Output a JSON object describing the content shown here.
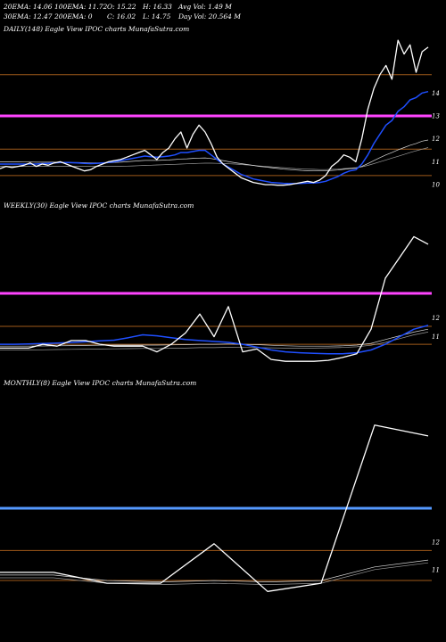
{
  "header": {
    "ema20": "20EMA: 14.06",
    "ema100": "100EMA: 11.72",
    "open": "O: 15.22",
    "high": "H: 16.33",
    "avg_vol": "Avg Vol: 1.49 M",
    "ema30": "30EMA: 12.47",
    "ema200": "200EMA: 0",
    "close": "C: 16.02",
    "low": "L: 14.75",
    "day_vol": "Day Vol: 20.564 M"
  },
  "colors": {
    "background": "#000000",
    "price": "#ffffff",
    "ema": "#1f4fff",
    "magenta_level": "#ff44ff",
    "blue_level": "#5599ff",
    "orange_level": "#a05a1a"
  },
  "chart_data": [
    {
      "type": "line",
      "title": "DAILY(148) Eagle   View  IPOC charts MunafaSutra.com",
      "ytick_labels": [
        "14",
        "13",
        "12",
        "11",
        "10"
      ],
      "yticks": [
        14,
        13,
        12,
        11,
        10
      ],
      "ylim": [
        9.5,
        16.5
      ],
      "horizontal_levels": [
        14.8,
        13,
        11.55,
        10.4
      ],
      "highlight_level": 13,
      "series": [
        {
          "role": "price",
          "values": [
            10.7,
            10.8,
            10.75,
            10.8,
            10.85,
            10.95,
            10.8,
            10.9,
            10.85,
            10.95,
            11.0,
            10.9,
            10.8,
            10.7,
            10.6,
            10.65,
            10.8,
            10.9,
            11.0,
            11.05,
            11.1,
            11.2,
            11.3,
            11.4,
            11.5,
            11.3,
            11.1,
            11.4,
            11.6,
            12.0,
            12.3,
            11.6,
            12.2,
            12.6,
            12.3,
            11.8,
            11.2,
            10.9,
            10.7,
            10.5,
            10.3,
            10.2,
            10.1,
            10.05,
            10.0,
            10.0,
            9.98,
            9.98,
            10.0,
            10.05,
            10.1,
            10.15,
            10.1,
            10.2,
            10.4,
            10.8,
            11.0,
            11.3,
            11.2,
            11.0,
            12.0,
            13.3,
            14.2,
            14.8,
            15.2,
            14.6,
            16.3,
            15.7,
            16.1,
            14.9,
            15.8,
            16.0
          ]
        },
        {
          "role": "ema",
          "values": [
            10.9,
            10.9,
            10.9,
            10.9,
            10.9,
            10.9,
            10.9,
            10.92,
            10.93,
            10.95,
            10.97,
            10.97,
            10.96,
            10.95,
            10.93,
            10.92,
            10.93,
            10.95,
            10.97,
            11.0,
            11.05,
            11.1,
            11.15,
            11.2,
            11.25,
            11.22,
            11.2,
            11.22,
            11.25,
            11.3,
            11.4,
            11.4,
            11.45,
            11.5,
            11.5,
            11.3,
            11.1,
            10.9,
            10.75,
            10.6,
            10.45,
            10.35,
            10.25,
            10.2,
            10.15,
            10.1,
            10.08,
            10.06,
            10.05,
            10.05,
            10.06,
            10.07,
            10.07,
            10.1,
            10.15,
            10.25,
            10.35,
            10.5,
            10.6,
            10.65,
            10.9,
            11.3,
            11.8,
            12.2,
            12.6,
            12.8,
            13.2,
            13.4,
            13.7,
            13.8,
            14.0,
            14.06
          ]
        },
        {
          "role": "avg",
          "values": [
            11.0,
            11.0,
            11.0,
            11.0,
            10.99,
            10.99,
            10.98,
            10.98,
            10.98,
            10.98,
            10.98,
            10.98,
            10.97,
            10.97,
            10.96,
            10.95,
            10.95,
            10.95,
            10.96,
            10.97,
            10.98,
            11.0,
            11.02,
            11.04,
            11.06,
            11.06,
            11.06,
            11.07,
            11.08,
            11.1,
            11.12,
            11.13,
            11.15,
            11.16,
            11.17,
            11.14,
            11.1,
            11.05,
            11.0,
            10.96,
            10.92,
            10.88,
            10.84,
            10.8,
            10.77,
            10.74,
            10.71,
            10.68,
            10.66,
            10.64,
            10.62,
            10.61,
            10.6,
            10.6,
            10.6,
            10.62,
            10.64,
            10.67,
            10.7,
            10.72,
            10.8,
            10.92,
            11.05,
            11.18,
            11.3,
            11.4,
            11.52,
            11.62,
            11.72,
            11.8,
            11.9,
            11.95
          ]
        },
        {
          "role": "avg2",
          "values": [
            10.8,
            10.8,
            10.8,
            10.8,
            10.8,
            10.8,
            10.8,
            10.8,
            10.8,
            10.8,
            10.8,
            10.8,
            10.8,
            10.8,
            10.8,
            10.8,
            10.8,
            10.8,
            10.8,
            10.8,
            10.8,
            10.81,
            10.82,
            10.83,
            10.84,
            10.85,
            10.86,
            10.87,
            10.88,
            10.89,
            10.9,
            10.91,
            10.92,
            10.93,
            10.94,
            10.94,
            10.93,
            10.92,
            10.91,
            10.9,
            10.88,
            10.86,
            10.84,
            10.82,
            10.8,
            10.78,
            10.76,
            10.74,
            10.72,
            10.7,
            10.69,
            10.68,
            10.67,
            10.66,
            10.66,
            10.67,
            10.68,
            10.7,
            10.72,
            10.74,
            10.78,
            10.84,
            10.92,
            11.0,
            11.08,
            11.16,
            11.24,
            11.32,
            11.4,
            11.48,
            11.55,
            11.62
          ]
        }
      ]
    },
    {
      "type": "line",
      "title": "WEEKLY(30) Eagle   View  IPOC charts MunafaSutra.com",
      "ytick_labels": [
        "12",
        "11"
      ],
      "yticks": [
        12,
        11
      ],
      "ylim": [
        9.0,
        17.5
      ],
      "horizontal_levels": [
        11.55,
        10.6
      ],
      "highlight_level": 13.3,
      "series": [
        {
          "role": "price",
          "values": [
            10.4,
            10.4,
            10.4,
            10.6,
            10.5,
            10.8,
            10.8,
            10.6,
            10.5,
            10.5,
            10.5,
            10.2,
            10.6,
            11.2,
            12.2,
            11.0,
            12.6,
            10.2,
            10.35,
            9.8,
            9.7,
            9.7,
            9.7,
            9.75,
            9.9,
            10.1,
            11.4,
            14.1,
            15.2,
            16.3,
            15.9
          ]
        },
        {
          "role": "ema",
          "values": [
            10.6,
            10.6,
            10.62,
            10.64,
            10.66,
            10.7,
            10.74,
            10.78,
            10.82,
            10.95,
            11.1,
            11.05,
            10.95,
            10.85,
            10.8,
            10.75,
            10.7,
            10.6,
            10.45,
            10.3,
            10.2,
            10.15,
            10.12,
            10.1,
            10.1,
            10.15,
            10.3,
            10.6,
            11.0,
            11.4,
            11.6
          ]
        },
        {
          "role": "avg",
          "values": [
            10.5,
            10.5,
            10.5,
            10.51,
            10.52,
            10.53,
            10.54,
            10.55,
            10.56,
            10.56,
            10.56,
            10.56,
            10.57,
            10.58,
            10.6,
            10.6,
            10.62,
            10.6,
            10.58,
            10.55,
            10.52,
            10.5,
            10.5,
            10.5,
            10.52,
            10.56,
            10.65,
            10.85,
            11.05,
            11.25,
            11.4
          ]
        },
        {
          "role": "avg2",
          "values": [
            10.3,
            10.3,
            10.3,
            10.31,
            10.32,
            10.33,
            10.34,
            10.35,
            10.36,
            10.37,
            10.38,
            10.38,
            10.39,
            10.4,
            10.42,
            10.42,
            10.44,
            10.43,
            10.42,
            10.41,
            10.4,
            10.4,
            10.4,
            10.41,
            10.43,
            10.47,
            10.55,
            10.7,
            10.9,
            11.1,
            11.25
          ]
        }
      ]
    },
    {
      "type": "line",
      "title": "MONTHLY(8) Eagle   View  IPOC charts MunafaSutra.com",
      "ytick_labels": [
        "12",
        "11"
      ],
      "yticks": [
        12,
        11
      ],
      "ylim": [
        9.0,
        17.5
      ],
      "horizontal_levels": [
        11.7,
        10.6
      ],
      "highlight_level": 13.25,
      "series": [
        {
          "role": "price",
          "values": [
            10.9,
            10.9,
            10.5,
            10.5,
            11.95,
            10.2,
            10.5,
            16.3,
            15.9
          ]
        },
        {
          "role": "avg",
          "values": [
            10.8,
            10.8,
            10.6,
            10.55,
            10.6,
            10.55,
            10.6,
            11.1,
            11.35
          ]
        },
        {
          "role": "avg2",
          "values": [
            10.7,
            10.7,
            10.5,
            10.45,
            10.5,
            10.45,
            10.5,
            11.0,
            11.25
          ]
        }
      ]
    }
  ]
}
